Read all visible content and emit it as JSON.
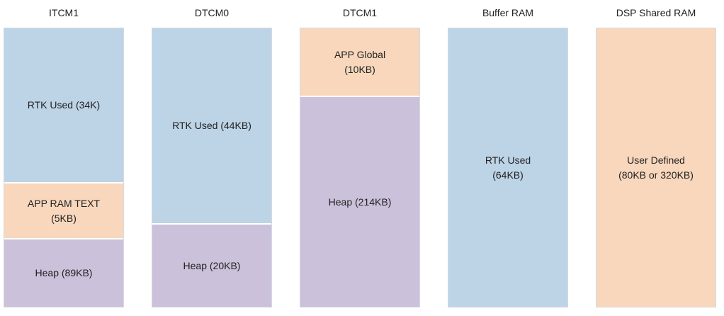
{
  "columns": [
    {
      "title": "ITCM1",
      "blocks": [
        {
          "line1": "RTK Used (34K)",
          "line2": "",
          "color": "#bdd3e6"
        },
        {
          "line1": "APP RAM TEXT",
          "line2": "(5KB)",
          "color": "#f8d7bc"
        },
        {
          "line1": "Heap (89KB)",
          "line2": "",
          "color": "#cbc1da"
        }
      ]
    },
    {
      "title": "DTCM0",
      "blocks": [
        {
          "line1": "RTK Used (44KB)",
          "line2": "",
          "color": "#bdd3e6"
        },
        {
          "line1": "Heap (20KB)",
          "line2": "",
          "color": "#cbc1da"
        }
      ]
    },
    {
      "title": "DTCM1",
      "blocks": [
        {
          "line1": "APP Global",
          "line2": "(10KB)",
          "color": "#f8d7bc"
        },
        {
          "line1": "Heap (214KB)",
          "line2": "",
          "color": "#cbc1da"
        }
      ]
    },
    {
      "title": "Buffer RAM",
      "blocks": [
        {
          "line1": "RTK Used",
          "line2": "(64KB)",
          "color": "#bdd3e6"
        }
      ]
    },
    {
      "title": "DSP Shared RAM",
      "blocks": [
        {
          "line1": "User Defined",
          "line2": "(80KB or 320KB)",
          "color": "#f8d7bc"
        }
      ]
    }
  ]
}
